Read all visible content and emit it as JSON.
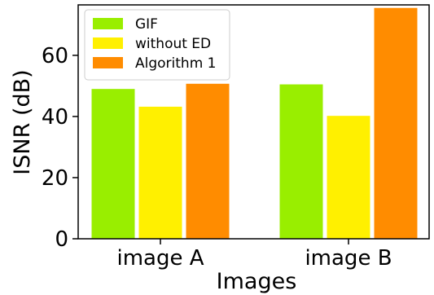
{
  "chart_data": {
    "type": "bar",
    "categories": [
      "image A",
      "image B"
    ],
    "series": [
      {
        "name": "GIF",
        "values": [
          49,
          50.5
        ],
        "color": "#99ee00"
      },
      {
        "name": "without ED",
        "values": [
          43.2,
          40.2
        ],
        "color": "#fff000"
      },
      {
        "name": "Algorithm 1",
        "values": [
          50.7,
          75.5
        ],
        "color": "#ff8c00"
      }
    ],
    "xlabel": "Images",
    "ylabel": "ISNR (dB)",
    "ylim": [
      0,
      76.5
    ],
    "yticks": [
      0,
      20,
      40,
      60
    ],
    "legend_position": "top-left",
    "grid": false
  }
}
